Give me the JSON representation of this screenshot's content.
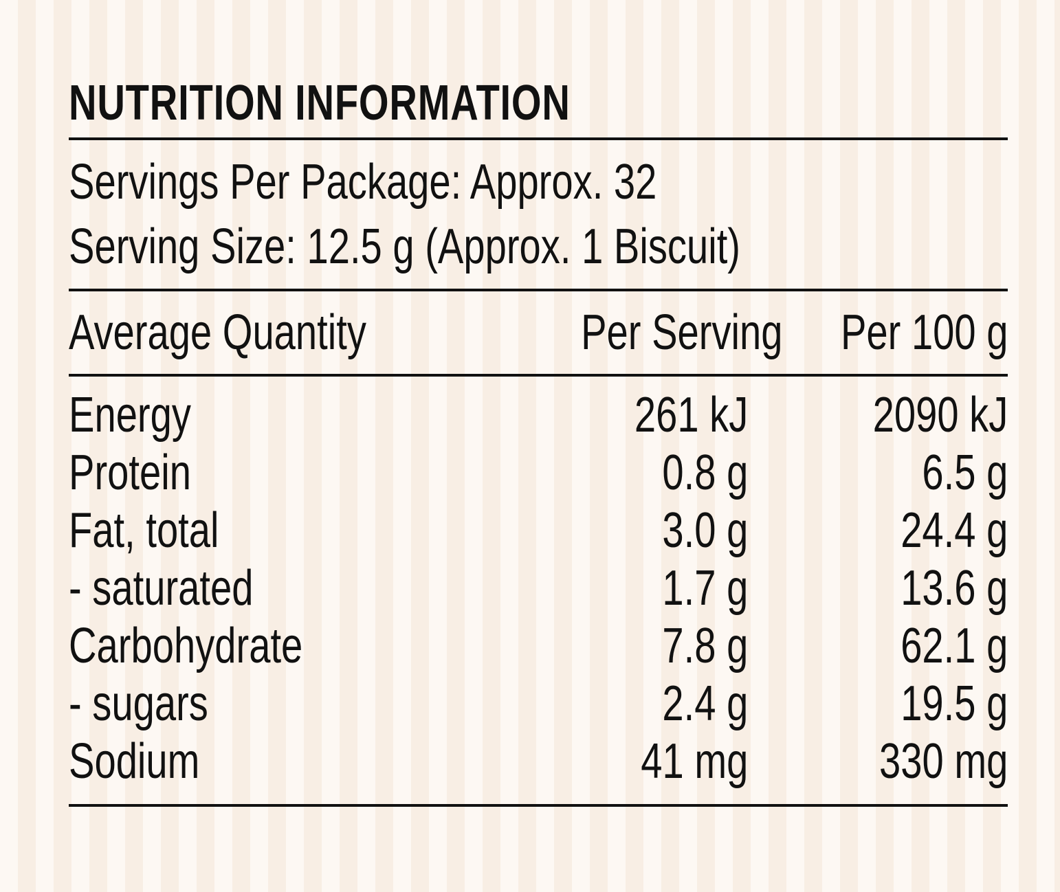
{
  "title": "NUTRITION INFORMATION",
  "servings_per_package": "Servings Per Package: Approx. 32",
  "serving_size": "Serving Size: 12.5 g (Approx. 1 Biscuit)",
  "table": {
    "headers": [
      "Average Quantity",
      "Per Serving",
      "Per 100 g"
    ],
    "rows": [
      {
        "name": "Energy",
        "per_serving": "261 kJ",
        "per_100g": "2090 kJ"
      },
      {
        "name": "Protein",
        "per_serving": "0.8 g",
        "per_100g": "6.5 g"
      },
      {
        "name": "Fat, total",
        "per_serving": "3.0 g",
        "per_100g": "24.4 g"
      },
      {
        "name": "- saturated",
        "per_serving": "1.7 g",
        "per_100g": "13.6 g"
      },
      {
        "name": "Carbohydrate",
        "per_serving": "7.8 g",
        "per_100g": "62.1 g"
      },
      {
        "name": "- sugars",
        "per_serving": "2.4 g",
        "per_100g": "19.5 g"
      },
      {
        "name": "Sodium",
        "per_serving": "41 mg",
        "per_100g": "330 mg"
      }
    ]
  },
  "colors": {
    "text": "#111111",
    "background_light": "#fdf8f3",
    "background_stripe": "#f8eee4"
  }
}
